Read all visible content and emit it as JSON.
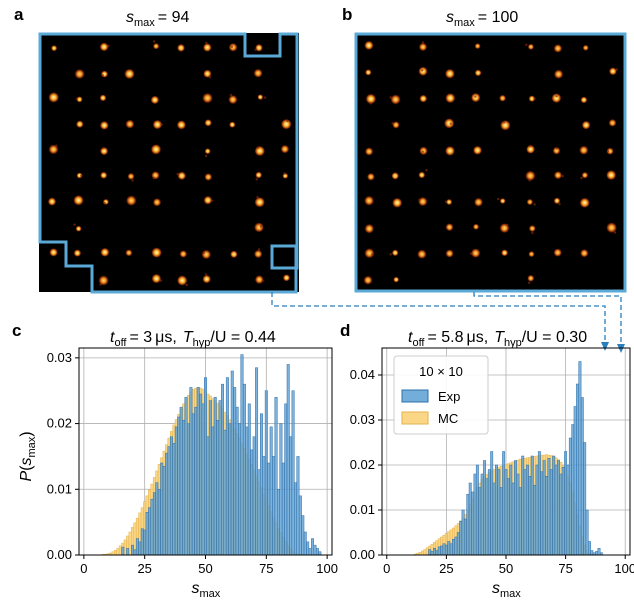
{
  "panels": {
    "a": {
      "letter": "a",
      "title_var": "s",
      "title_sub": "max",
      "title_val": "= 94"
    },
    "b": {
      "letter": "b",
      "title_var": "s",
      "title_sub": "max",
      "title_val": "= 100"
    },
    "c": {
      "letter": "c"
    },
    "d": {
      "letter": "d"
    }
  },
  "colors": {
    "exp": "#5b9fd3",
    "exp_edge": "#2f6fa8",
    "mc": "#f9cf72",
    "mc_edge": "#e6b24a",
    "outline": "#5aa9d6",
    "grid": "#b0b0b0"
  },
  "chart_data": [
    {
      "type": "bar",
      "panel": "c",
      "title": "t_off = 3 μs, T_hyp/U = 0.44",
      "title_parts": {
        "t": "t",
        "t_sub": "off",
        "t_val": "= 3",
        "t_unit": "μs,",
        "T": "T",
        "T_sub": "hyp",
        "U_part": "/U = 0.44"
      },
      "xlabel": "s_max",
      "ylabel": "P(s_max)",
      "xlim": [
        -2,
        102
      ],
      "ylim": [
        0,
        0.0315
      ],
      "xticks": [
        0,
        25,
        50,
        75,
        100
      ],
      "yticks": [
        0.0,
        0.01,
        0.02,
        0.03
      ],
      "ytick_labels": [
        "0.00",
        "0.01",
        "0.02",
        "0.03"
      ],
      "grid": true,
      "series": [
        {
          "name": "MC",
          "x_start": 8,
          "values": [
            0.0001,
            0.0001,
            0.0002,
            0.0003,
            0.0005,
            0.0007,
            0.001,
            0.0014,
            0.0018,
            0.0023,
            0.0029,
            0.0035,
            0.0042,
            0.0049,
            0.0056,
            0.0064,
            0.0072,
            0.0081,
            0.009,
            0.0099,
            0.0108,
            0.0118,
            0.0128,
            0.0138,
            0.0148,
            0.0158,
            0.0168,
            0.0178,
            0.0188,
            0.0198,
            0.0206,
            0.0214,
            0.0222,
            0.023,
            0.0237,
            0.0243,
            0.0248,
            0.0252,
            0.0254,
            0.0255,
            0.0254,
            0.0252,
            0.0248,
            0.0245,
            0.0242,
            0.0238,
            0.0235,
            0.0231,
            0.0227,
            0.0222,
            0.0217,
            0.0212,
            0.0206,
            0.0199,
            0.0192,
            0.0185,
            0.0178,
            0.017,
            0.0162,
            0.0154,
            0.0146,
            0.0138,
            0.0129,
            0.012,
            0.0111,
            0.0102,
            0.0093,
            0.0084,
            0.0075,
            0.0066,
            0.0057,
            0.0049,
            0.0041,
            0.0034,
            0.0027,
            0.0021,
            0.0015,
            0.001,
            0.0006,
            0.0003,
            0.0002,
            0.0001
          ]
        },
        {
          "name": "Exp",
          "x_start": 8,
          "values": [
            0,
            0,
            0,
            0,
            0,
            0,
            0,
            0,
            0.0012,
            0,
            0.001,
            0,
            0.0015,
            0.0008,
            0.0025,
            0.002,
            0.004,
            0.0038,
            0.0065,
            0.0072,
            0.0085,
            0.0095,
            0.011,
            0.01,
            0.014,
            0.0135,
            0.0155,
            0.0165,
            0.018,
            0.017,
            0.0195,
            0.021,
            0.0225,
            0.0205,
            0.024,
            0.02,
            0.0255,
            0.0215,
            0.0225,
            0.0255,
            0.0245,
            0.023,
            0.027,
            0.018,
            0.0235,
            0.0195,
            0.024,
            0.0205,
            0.0235,
            0.026,
            0.019,
            0.027,
            0.02,
            0.028,
            0.0255,
            0.0225,
            0.02,
            0.0305,
            0.026,
            0.0195,
            0.023,
            0.016,
            0.018,
            0.0285,
            0.013,
            0.0215,
            0.015,
            0.025,
            0.014,
            0.0195,
            0.015,
            0.024,
            0.01,
            0.02,
            0.014,
            0.023,
            0.029,
            0.018,
            0.025,
            0.011,
            0.015,
            0.009,
            0.006,
            0.0035,
            0.002,
            0.001,
            0.0025,
            0.0015,
            0.001,
            0.0005
          ]
        }
      ]
    },
    {
      "type": "bar",
      "panel": "d",
      "title": "t_off = 5.8 μs, T_hyp/U = 0.30",
      "title_parts": {
        "t": "t",
        "t_sub": "off",
        "t_val": "= 5.8",
        "t_unit": "μs,",
        "T": "T",
        "T_sub": "hyp",
        "U_part": "/U = 0.30"
      },
      "xlabel": "s_max",
      "ylabel": "",
      "xlim": [
        -2,
        102
      ],
      "ylim": [
        0,
        0.046
      ],
      "xticks": [
        0,
        25,
        50,
        75,
        100
      ],
      "yticks": [
        0.0,
        0.01,
        0.02,
        0.03,
        0.04
      ],
      "ytick_labels": [
        "0.00",
        "0.01",
        "0.02",
        "0.03",
        "0.04"
      ],
      "grid": true,
      "legend": {
        "title": "10 × 10",
        "position": "top-left",
        "entries": [
          "Exp",
          "MC"
        ]
      },
      "series": [
        {
          "name": "MC",
          "x_start": 12,
          "values": [
            0.0002,
            0.0004,
            0.0006,
            0.0009,
            0.0012,
            0.0016,
            0.002,
            0.0024,
            0.0028,
            0.0032,
            0.0036,
            0.004,
            0.0044,
            0.0048,
            0.0052,
            0.0056,
            0.006,
            0.0065,
            0.007,
            0.0076,
            0.0082,
            0.009,
            0.01,
            0.0112,
            0.0125,
            0.0138,
            0.015,
            0.016,
            0.0168,
            0.0174,
            0.0179,
            0.0183,
            0.0187,
            0.019,
            0.0193,
            0.0195,
            0.0197,
            0.0199,
            0.0201,
            0.0203,
            0.0205,
            0.0207,
            0.0209,
            0.0211,
            0.0213,
            0.0214,
            0.0215,
            0.0216,
            0.0217,
            0.0218,
            0.0219,
            0.022,
            0.0221,
            0.0222,
            0.0222,
            0.0223,
            0.0222,
            0.0221,
            0.0219,
            0.0216,
            0.0212,
            0.0206,
            0.0198,
            0.0188,
            0.0176,
            0.016,
            0.014,
            0.0116,
            0.009,
            0.0064,
            0.004,
            0.0022,
            0.001,
            0.0004,
            0.0002
          ]
        },
        {
          "name": "Exp",
          "x_start": 12,
          "values": [
            0,
            0,
            0,
            0,
            0,
            0,
            0.0012,
            0.0008,
            0.0015,
            0.001,
            0.0018,
            0.002,
            0.0025,
            0.0022,
            0.003,
            0.0025,
            0.0035,
            0.004,
            0.005,
            0.0075,
            0.01,
            0.008,
            0.0135,
            0.016,
            0.014,
            0.018,
            0.02,
            0.015,
            0.018,
            0.021,
            0.017,
            0.019,
            0.023,
            0.016,
            0.02,
            0.019,
            0.015,
            0.023,
            0.019,
            0.017,
            0.02,
            0.016,
            0.021,
            0.018,
            0.015,
            0.022,
            0.019,
            0.02,
            0.0175,
            0.022,
            0.0155,
            0.02,
            0.023,
            0.0185,
            0.021,
            0.0175,
            0.0215,
            0.019,
            0.022,
            0.02,
            0.021,
            0.018,
            0.0195,
            0.023,
            0.02,
            0.026,
            0.029,
            0.033,
            0.038,
            0.043,
            0.035,
            0.025,
            0.01,
            0.003,
            0.001,
            0.0005,
            0.0008,
            0.0015,
            0.0005
          ]
        }
      ]
    }
  ]
}
